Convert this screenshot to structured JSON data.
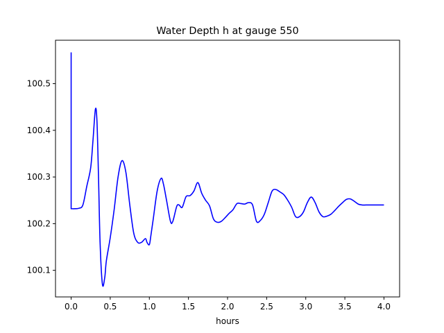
{
  "chart_data": {
    "type": "line",
    "title": "Water Depth h at gauge 550",
    "xlabel": "hours",
    "ylabel": "",
    "xlim": [
      -0.2,
      4.2
    ],
    "ylim": [
      100.043,
      100.593
    ],
    "xticks": [
      0.0,
      0.5,
      1.0,
      1.5,
      2.0,
      2.5,
      3.0,
      3.5,
      4.0
    ],
    "xtick_labels": [
      "0.0",
      "0.5",
      "1.0",
      "1.5",
      "2.0",
      "2.5",
      "3.0",
      "3.5",
      "4.0"
    ],
    "yticks": [
      100.1,
      100.2,
      100.3,
      100.4,
      100.5
    ],
    "ytick_labels": [
      "100.1",
      "100.2",
      "100.3",
      "100.4",
      "100.5"
    ],
    "grid": false,
    "series": [
      {
        "color": "#0000ff",
        "x": [
          0.0,
          0.0,
          0.005,
          0.05,
          0.1,
          0.15,
          0.2,
          0.25,
          0.28,
          0.31,
          0.33,
          0.35,
          0.37,
          0.4,
          0.43,
          0.45,
          0.5,
          0.55,
          0.6,
          0.65,
          0.7,
          0.75,
          0.8,
          0.85,
          0.9,
          0.95,
          0.97,
          1.0,
          1.02,
          1.05,
          1.1,
          1.15,
          1.18,
          1.22,
          1.27,
          1.3,
          1.35,
          1.38,
          1.42,
          1.47,
          1.52,
          1.57,
          1.62,
          1.67,
          1.72,
          1.77,
          1.82,
          1.87,
          1.92,
          1.97,
          2.02,
          2.07,
          2.12,
          2.17,
          2.22,
          2.27,
          2.32,
          2.37,
          2.42,
          2.47,
          2.52,
          2.57,
          2.62,
          2.67,
          2.72,
          2.77,
          2.82,
          2.87,
          2.92,
          2.97,
          3.02,
          3.07,
          3.12,
          3.17,
          3.22,
          3.27,
          3.32,
          3.37,
          3.42,
          3.47,
          3.52,
          3.57,
          3.62,
          3.67,
          3.72,
          3.77,
          3.82,
          3.87,
          3.92,
          3.97,
          4.0
        ],
        "y": [
          100.567,
          100.232,
          100.232,
          100.232,
          100.233,
          100.24,
          100.28,
          100.32,
          100.38,
          100.445,
          100.42,
          100.3,
          100.16,
          100.07,
          100.085,
          100.12,
          100.17,
          100.23,
          100.3,
          100.335,
          100.31,
          100.24,
          100.18,
          100.16,
          100.16,
          100.168,
          100.16,
          100.155,
          100.175,
          100.21,
          100.27,
          100.297,
          100.285,
          100.25,
          100.205,
          100.205,
          100.237,
          100.24,
          100.235,
          100.258,
          100.26,
          100.27,
          100.288,
          100.265,
          100.25,
          100.238,
          100.21,
          100.203,
          100.205,
          100.213,
          100.222,
          100.23,
          100.243,
          100.243,
          100.242,
          100.245,
          100.24,
          100.205,
          100.207,
          100.22,
          100.245,
          100.27,
          100.273,
          100.268,
          100.262,
          100.25,
          100.235,
          100.215,
          100.215,
          100.225,
          100.245,
          100.257,
          100.245,
          100.225,
          100.215,
          100.216,
          100.22,
          100.228,
          100.237,
          100.245,
          100.252,
          100.253,
          100.248,
          100.242,
          100.24,
          100.24,
          100.24,
          100.24,
          100.24,
          100.24,
          100.24
        ]
      }
    ]
  }
}
